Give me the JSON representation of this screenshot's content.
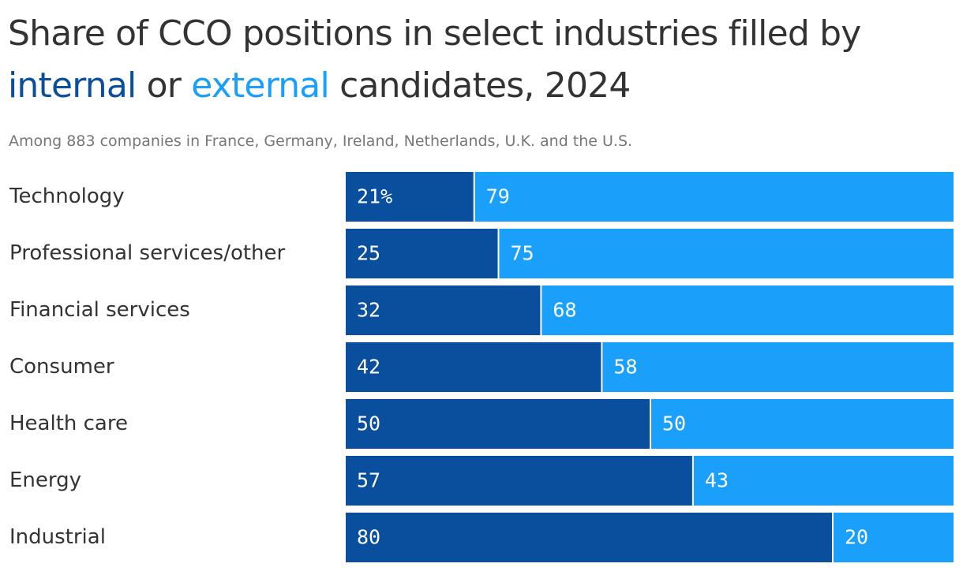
{
  "chart_data": {
    "type": "stacked-bar",
    "title": {
      "before": "Share of CCO positions in select industries filled by",
      "between": "or",
      "after": "candidates, 2024"
    },
    "subtitle": "Among 883 companies in France, Germany, Ireland, Netherlands, U.K. and the U.S.",
    "categories": [
      "Technology",
      "Professional services/other",
      "Financial services",
      "Consumer",
      "Health care",
      "Energy",
      "Industrial"
    ],
    "series": [
      {
        "name": "internal",
        "color": "#0a4f9e",
        "values": [
          21,
          25,
          32,
          42,
          50,
          57,
          80
        ],
        "value_labels": [
          "21%",
          "25",
          "32",
          "42",
          "50",
          "57",
          "80"
        ]
      },
      {
        "name": "external",
        "color": "#1a9ffb",
        "values": [
          79,
          75,
          68,
          58,
          50,
          43,
          20
        ]
      }
    ],
    "xlim": [
      0,
      100
    ]
  }
}
